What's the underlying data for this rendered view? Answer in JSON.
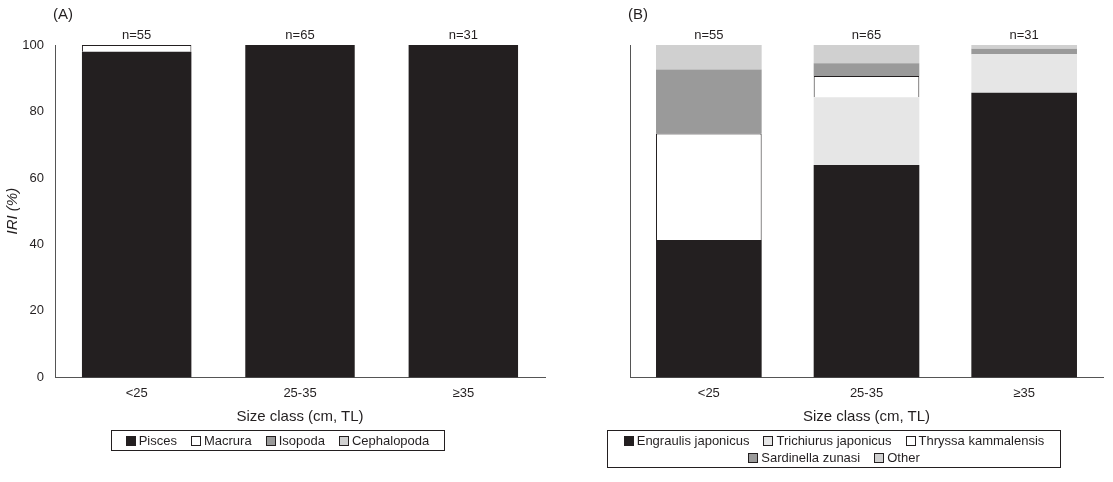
{
  "chart_data": [
    {
      "type": "bar",
      "title": "(A)",
      "xlabel": "Size class (cm, TL)",
      "ylabel": "IRI (%)",
      "categories": [
        "<25",
        "25-35",
        "≥35"
      ],
      "stacked": true,
      "series": [
        {
          "name": "Pisces",
          "color": "#231f20",
          "values": [
            98,
            100,
            100
          ]
        },
        {
          "name": "Macrura",
          "color": "#ffffff",
          "values": [
            2,
            0,
            0
          ]
        },
        {
          "name": "Isopoda",
          "color": "#9a9a9a",
          "values": [
            0,
            0,
            0
          ]
        },
        {
          "name": "Cephalopoda",
          "color": "#d0d0d0",
          "values": [
            0,
            0,
            0
          ]
        }
      ],
      "ylim": [
        0,
        100
      ],
      "yticks": [
        0,
        20,
        40,
        60,
        80,
        100
      ],
      "grid": false,
      "legend": "bottom",
      "annotations": [
        {
          "text": "n=55",
          "x": "<25",
          "y": 100
        },
        {
          "text": "n=65",
          "x": "25-35",
          "y": 100
        },
        {
          "text": "n=31",
          "x": "≥35",
          "y": 100
        }
      ]
    },
    {
      "type": "bar",
      "title": "(B)",
      "xlabel": "Size class (cm, TL)",
      "categories": [
        "<25",
        "25-35",
        "≥35"
      ],
      "stacked": true,
      "series": [
        {
          "name": "Engraulis japonicus",
          "color": "#231f20",
          "values": [
            41.3,
            63.9,
            85.6
          ]
        },
        {
          "name": "Trichiurus japonicus",
          "color": "#e6e6e6",
          "values": [
            0,
            20.4,
            11.6
          ]
        },
        {
          "name": "Thryssa kammalensis",
          "color": "#ffffff",
          "values": [
            32.1,
            6.4,
            0
          ]
        },
        {
          "name": "Sardinella zunasi",
          "color": "#9a9a9a",
          "values": [
            19.2,
            3.8,
            1.7
          ]
        },
        {
          "name": "Other",
          "color": "#d0d0d0",
          "values": [
            7.4,
            5.5,
            1.1
          ]
        }
      ],
      "ylim": [
        0,
        100
      ],
      "yticks": [
        0,
        20,
        40,
        60,
        80,
        100
      ],
      "tick_labels": "x",
      "grid": false,
      "legend": "bottom",
      "annotations": [
        {
          "text": "n=55",
          "x": "<25",
          "y": 100
        },
        {
          "text": "n=65",
          "x": "25-35",
          "y": 100
        },
        {
          "text": "n=31",
          "x": "≥35",
          "y": 100
        }
      ]
    }
  ]
}
